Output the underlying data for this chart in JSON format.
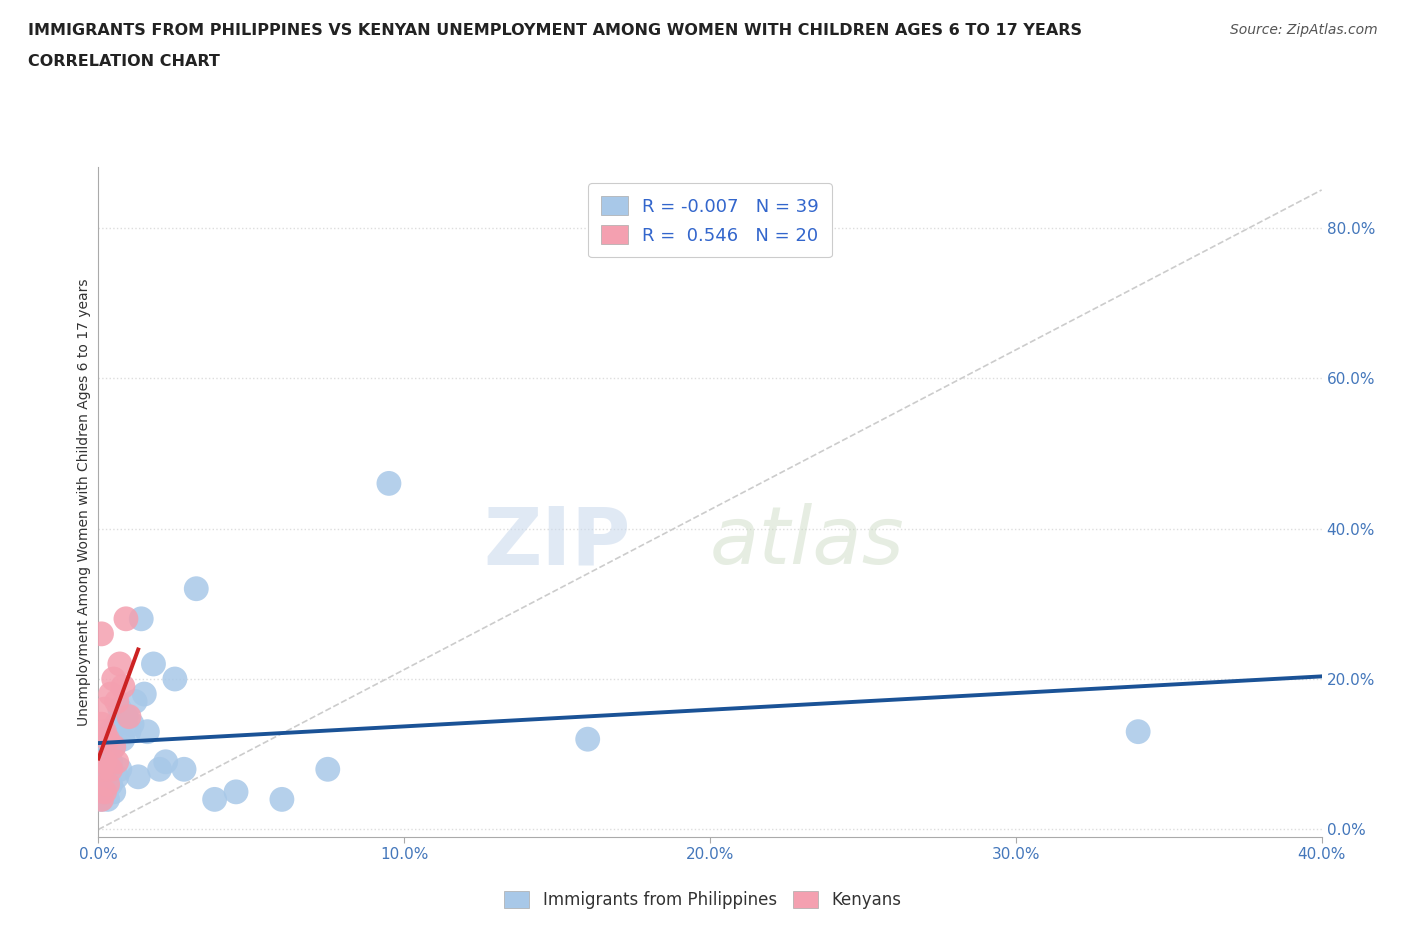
{
  "title_line1": "IMMIGRANTS FROM PHILIPPINES VS KENYAN UNEMPLOYMENT AMONG WOMEN WITH CHILDREN AGES 6 TO 17 YEARS",
  "title_line2": "CORRELATION CHART",
  "source": "Source: ZipAtlas.com",
  "ylabel": "Unemployment Among Women with Children Ages 6 to 17 years",
  "xlim": [
    0.0,
    0.4
  ],
  "ylim": [
    -0.01,
    0.88
  ],
  "xticks": [
    0.0,
    0.1,
    0.2,
    0.3,
    0.4
  ],
  "yticks_right": [
    0.0,
    0.2,
    0.4,
    0.6,
    0.8
  ],
  "grid_color": "#dddddd",
  "background_color": "#ffffff",
  "watermark_zip": "ZIP",
  "watermark_atlas": "atlas",
  "blue_label": "Immigrants from Philippines",
  "pink_label": "Kenyans",
  "blue_R": -0.007,
  "blue_N": 39,
  "pink_R": 0.546,
  "pink_N": 20,
  "blue_color": "#a8c8e8",
  "pink_color": "#f4a0b0",
  "blue_line_color": "#1a5296",
  "pink_line_color": "#cc2222",
  "diagonal_color": "#cccccc",
  "blue_points_x": [
    0.001,
    0.001,
    0.002,
    0.002,
    0.002,
    0.003,
    0.003,
    0.003,
    0.004,
    0.004,
    0.004,
    0.005,
    0.005,
    0.006,
    0.006,
    0.007,
    0.007,
    0.008,
    0.009,
    0.01,
    0.011,
    0.012,
    0.013,
    0.014,
    0.015,
    0.016,
    0.018,
    0.02,
    0.022,
    0.025,
    0.028,
    0.032,
    0.038,
    0.045,
    0.06,
    0.075,
    0.095,
    0.16,
    0.34
  ],
  "blue_points_y": [
    0.06,
    0.04,
    0.05,
    0.08,
    0.12,
    0.04,
    0.07,
    0.1,
    0.06,
    0.09,
    0.13,
    0.05,
    0.11,
    0.07,
    0.14,
    0.08,
    0.16,
    0.12,
    0.15,
    0.13,
    0.14,
    0.17,
    0.07,
    0.28,
    0.18,
    0.13,
    0.22,
    0.08,
    0.09,
    0.2,
    0.08,
    0.32,
    0.04,
    0.05,
    0.04,
    0.08,
    0.46,
    0.12,
    0.13
  ],
  "pink_points_x": [
    0.001,
    0.001,
    0.001,
    0.001,
    0.002,
    0.002,
    0.002,
    0.002,
    0.003,
    0.003,
    0.004,
    0.004,
    0.005,
    0.005,
    0.006,
    0.006,
    0.007,
    0.008,
    0.009,
    0.01
  ],
  "pink_points_y": [
    0.04,
    0.08,
    0.14,
    0.26,
    0.05,
    0.09,
    0.13,
    0.16,
    0.06,
    0.12,
    0.08,
    0.18,
    0.11,
    0.2,
    0.09,
    0.17,
    0.22,
    0.19,
    0.28,
    0.15
  ]
}
